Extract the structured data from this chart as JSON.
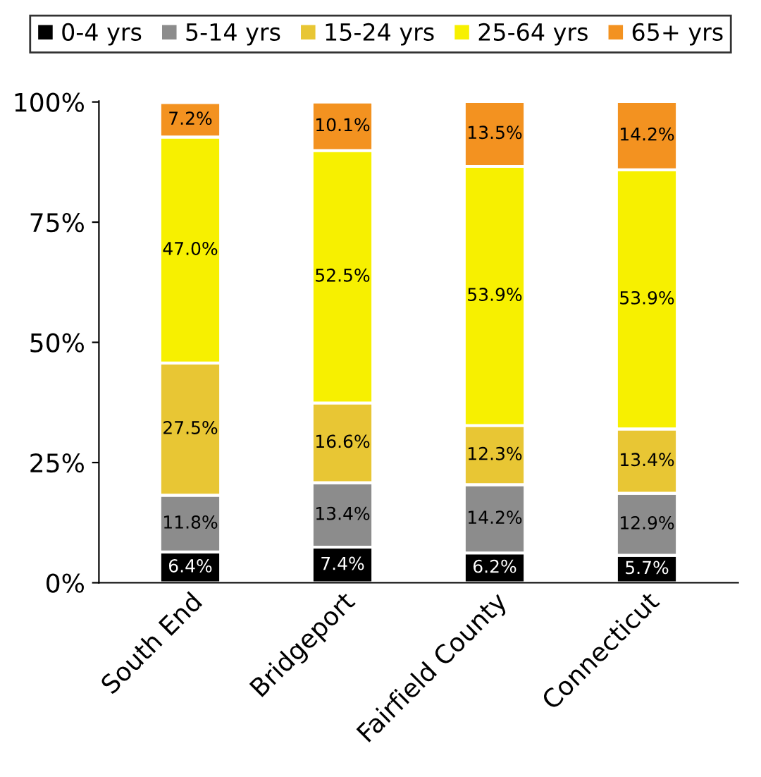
{
  "chart_data": {
    "type": "bar",
    "stacked": true,
    "categories": [
      "South End",
      "Bridgeport",
      "Fairfield County",
      "Connecticut"
    ],
    "series": [
      {
        "name": "0-4 yrs",
        "color": "#000000",
        "values": [
          6.4,
          7.4,
          6.2,
          5.7
        ],
        "value_labels": [
          "6.4%",
          "7.4%",
          "6.2%",
          "5.7%"
        ]
      },
      {
        "name": "5-14 yrs",
        "color": "#8c8c8c",
        "values": [
          11.8,
          13.4,
          14.2,
          12.9
        ],
        "value_labels": [
          "11.8%",
          "13.4%",
          "14.2%",
          "12.9%"
        ]
      },
      {
        "name": "15-24 yrs",
        "color": "#e8c634",
        "values": [
          27.5,
          16.6,
          12.3,
          13.4
        ],
        "value_labels": [
          "27.5%",
          "16.6%",
          "12.3%",
          "13.4%"
        ]
      },
      {
        "name": "25-64 yrs",
        "color": "#f7f000",
        "values": [
          47.0,
          52.5,
          53.9,
          53.9
        ],
        "value_labels": [
          "47.0%",
          "52.5%",
          "53.9%",
          "53.9%"
        ]
      },
      {
        "name": "65+ yrs",
        "color": "#f39220",
        "values": [
          7.2,
          10.1,
          13.5,
          14.2
        ],
        "value_labels": [
          "7.2%",
          "10.1%",
          "13.5%",
          "14.2%"
        ]
      }
    ],
    "ylim": [
      0,
      100.2
    ],
    "yticks": [
      {
        "value": 0,
        "label": "0%"
      },
      {
        "value": 25,
        "label": "25%"
      },
      {
        "value": 50,
        "label": "50%"
      },
      {
        "value": 75,
        "label": "75%"
      },
      {
        "value": 100,
        "label": "100%"
      }
    ],
    "grid": false,
    "legend": "top"
  }
}
